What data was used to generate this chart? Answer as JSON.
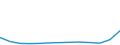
{
  "x": [
    0,
    1,
    2,
    3,
    4,
    5,
    6,
    7,
    8,
    9,
    10,
    11,
    12
  ],
  "y": [
    4.0,
    2.5,
    1.8,
    1.7,
    1.8,
    2.0,
    2.1,
    2.2,
    2.3,
    2.1,
    1.9,
    3.2,
    6.5
  ],
  "line_color": "#2196c8",
  "linewidth": 1.0,
  "background_color": "#ffffff",
  "ylim": [
    1.2,
    18.0
  ]
}
